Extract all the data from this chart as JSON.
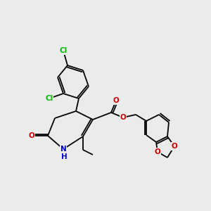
{
  "background_color": "#ebebeb",
  "atom_colors": {
    "Cl": "#00bb00",
    "O": "#cc0000",
    "N": "#0000cc",
    "C": "#000000"
  },
  "bond_color": "#000000",
  "font_size": 7.5
}
